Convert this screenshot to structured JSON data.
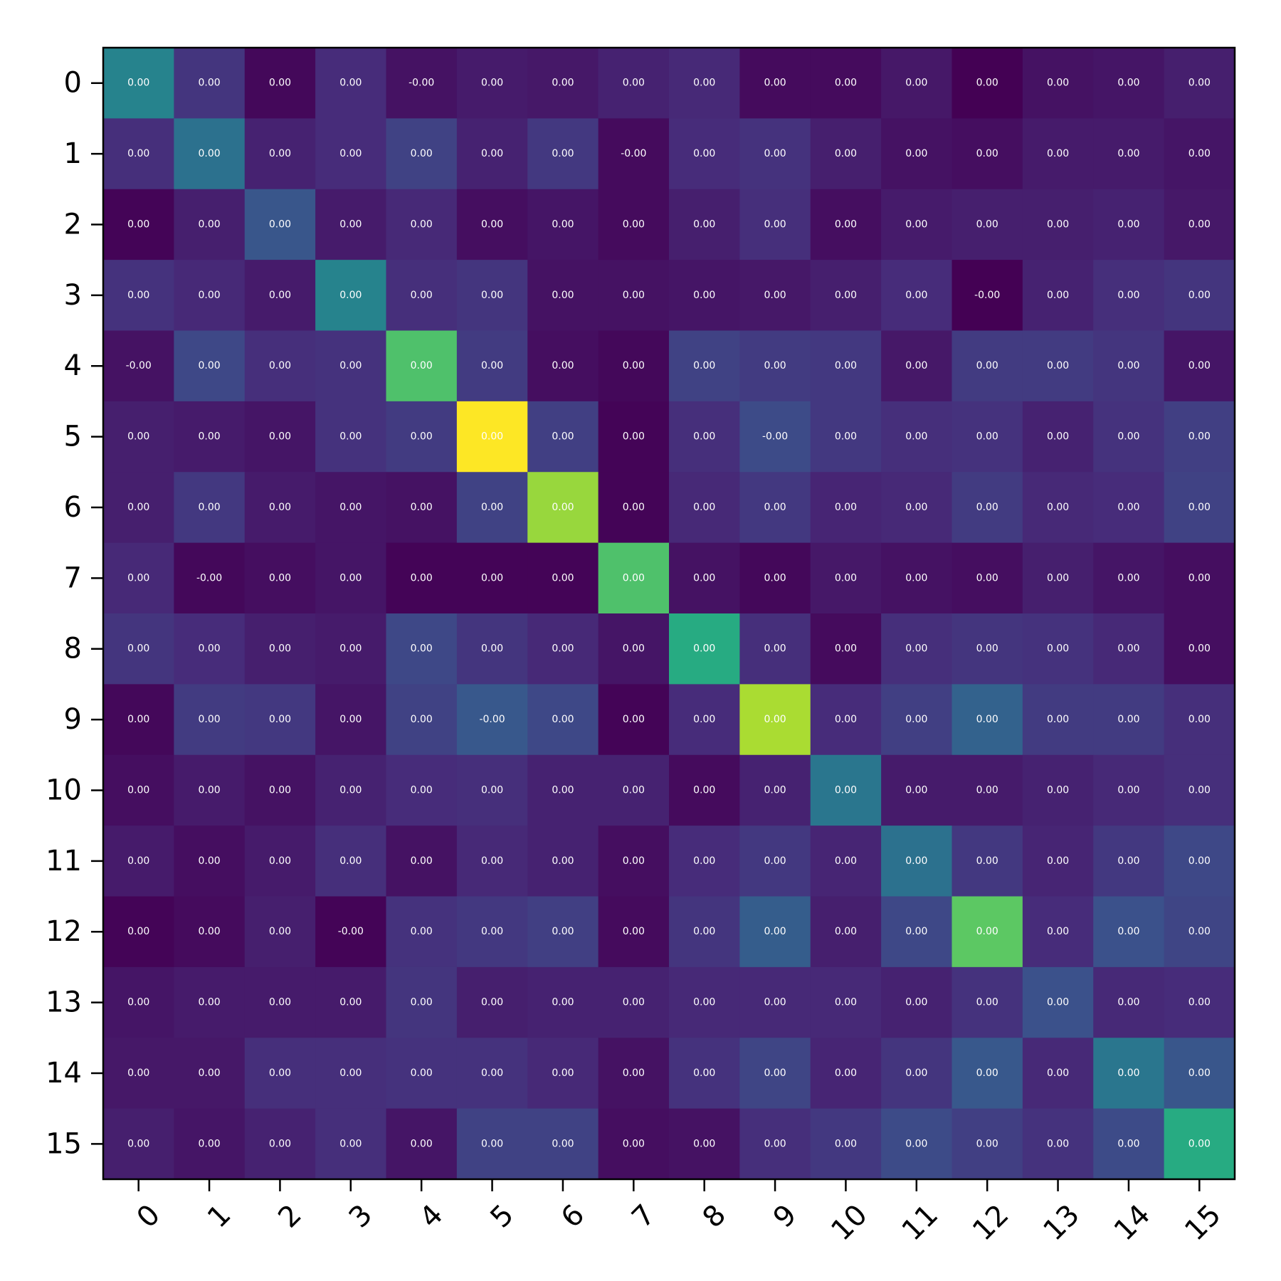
{
  "chart_data": {
    "type": "heatmap",
    "colormap": "viridis",
    "x_ticks": [
      "0",
      "1",
      "2",
      "3",
      "4",
      "5",
      "6",
      "7",
      "8",
      "9",
      "10",
      "11",
      "12",
      "13",
      "14",
      "15"
    ],
    "y_ticks": [
      "0",
      "1",
      "2",
      "3",
      "4",
      "5",
      "6",
      "7",
      "8",
      "9",
      "10",
      "11",
      "12",
      "13",
      "14",
      "15"
    ],
    "x_tick_rotation_deg": 45,
    "grid": false,
    "values": [
      [
        0.45,
        0.16,
        0.02,
        0.13,
        0.05,
        0.08,
        0.07,
        0.1,
        0.12,
        0.03,
        0.03,
        0.07,
        0.0,
        0.05,
        0.06,
        0.09
      ],
      [
        0.14,
        0.38,
        0.1,
        0.13,
        0.2,
        0.1,
        0.17,
        0.03,
        0.13,
        0.15,
        0.09,
        0.05,
        0.04,
        0.08,
        0.08,
        0.06
      ],
      [
        0.01,
        0.09,
        0.27,
        0.08,
        0.12,
        0.04,
        0.06,
        0.03,
        0.09,
        0.14,
        0.04,
        0.08,
        0.09,
        0.09,
        0.1,
        0.07
      ],
      [
        0.15,
        0.12,
        0.08,
        0.45,
        0.14,
        0.16,
        0.05,
        0.05,
        0.06,
        0.07,
        0.09,
        0.13,
        0.0,
        0.1,
        0.14,
        0.16
      ],
      [
        0.05,
        0.22,
        0.14,
        0.15,
        0.72,
        0.18,
        0.04,
        0.02,
        0.2,
        0.18,
        0.17,
        0.07,
        0.18,
        0.18,
        0.16,
        0.06
      ],
      [
        0.09,
        0.08,
        0.06,
        0.15,
        0.18,
        1.0,
        0.19,
        0.01,
        0.14,
        0.23,
        0.17,
        0.14,
        0.15,
        0.1,
        0.15,
        0.19
      ],
      [
        0.09,
        0.17,
        0.08,
        0.06,
        0.05,
        0.2,
        0.85,
        0.01,
        0.12,
        0.17,
        0.11,
        0.12,
        0.18,
        0.12,
        0.13,
        0.2
      ],
      [
        0.12,
        0.02,
        0.04,
        0.06,
        0.01,
        0.01,
        0.01,
        0.72,
        0.05,
        0.02,
        0.07,
        0.05,
        0.04,
        0.09,
        0.06,
        0.04
      ],
      [
        0.16,
        0.13,
        0.09,
        0.08,
        0.22,
        0.16,
        0.12,
        0.06,
        0.62,
        0.14,
        0.03,
        0.14,
        0.16,
        0.15,
        0.12,
        0.04
      ],
      [
        0.02,
        0.18,
        0.17,
        0.06,
        0.2,
        0.28,
        0.22,
        0.01,
        0.13,
        0.88,
        0.13,
        0.19,
        0.32,
        0.18,
        0.18,
        0.14
      ],
      [
        0.04,
        0.08,
        0.05,
        0.1,
        0.13,
        0.14,
        0.1,
        0.1,
        0.03,
        0.1,
        0.4,
        0.08,
        0.08,
        0.1,
        0.12,
        0.14
      ],
      [
        0.08,
        0.04,
        0.08,
        0.14,
        0.05,
        0.12,
        0.1,
        0.04,
        0.13,
        0.17,
        0.11,
        0.38,
        0.17,
        0.11,
        0.17,
        0.22
      ],
      [
        0.01,
        0.03,
        0.09,
        0.01,
        0.15,
        0.17,
        0.19,
        0.03,
        0.16,
        0.3,
        0.09,
        0.22,
        0.75,
        0.13,
        0.25,
        0.21
      ],
      [
        0.06,
        0.08,
        0.08,
        0.08,
        0.16,
        0.09,
        0.1,
        0.1,
        0.12,
        0.12,
        0.12,
        0.1,
        0.15,
        0.25,
        0.12,
        0.13
      ],
      [
        0.07,
        0.07,
        0.14,
        0.14,
        0.15,
        0.15,
        0.12,
        0.05,
        0.15,
        0.21,
        0.11,
        0.16,
        0.28,
        0.12,
        0.4,
        0.27
      ],
      [
        0.09,
        0.06,
        0.1,
        0.14,
        0.06,
        0.2,
        0.2,
        0.04,
        0.05,
        0.14,
        0.17,
        0.23,
        0.19,
        0.15,
        0.23,
        0.62
      ]
    ],
    "cell_labels": [
      [
        "0.00",
        "0.00",
        "0.00",
        "0.00",
        "-0.00",
        "0.00",
        "0.00",
        "0.00",
        "0.00",
        "0.00",
        "0.00",
        "0.00",
        "0.00",
        "0.00",
        "0.00",
        "0.00"
      ],
      [
        "0.00",
        "0.00",
        "0.00",
        "0.00",
        "0.00",
        "0.00",
        "0.00",
        "-0.00",
        "0.00",
        "0.00",
        "0.00",
        "0.00",
        "0.00",
        "0.00",
        "0.00",
        "0.00"
      ],
      [
        "0.00",
        "0.00",
        "0.00",
        "0.00",
        "0.00",
        "0.00",
        "0.00",
        "0.00",
        "0.00",
        "0.00",
        "0.00",
        "0.00",
        "0.00",
        "0.00",
        "0.00",
        "0.00"
      ],
      [
        "0.00",
        "0.00",
        "0.00",
        "0.00",
        "0.00",
        "0.00",
        "0.00",
        "0.00",
        "0.00",
        "0.00",
        "0.00",
        "0.00",
        "-0.00",
        "0.00",
        "0.00",
        "0.00"
      ],
      [
        "-0.00",
        "0.00",
        "0.00",
        "0.00",
        "0.00",
        "0.00",
        "0.00",
        "0.00",
        "0.00",
        "0.00",
        "0.00",
        "0.00",
        "0.00",
        "0.00",
        "0.00",
        "0.00"
      ],
      [
        "0.00",
        "0.00",
        "0.00",
        "0.00",
        "0.00",
        "0.00",
        "0.00",
        "0.00",
        "0.00",
        "-0.00",
        "0.00",
        "0.00",
        "0.00",
        "0.00",
        "0.00",
        "0.00"
      ],
      [
        "0.00",
        "0.00",
        "0.00",
        "0.00",
        "0.00",
        "0.00",
        "0.00",
        "0.00",
        "0.00",
        "0.00",
        "0.00",
        "0.00",
        "0.00",
        "0.00",
        "0.00",
        "0.00"
      ],
      [
        "0.00",
        "-0.00",
        "0.00",
        "0.00",
        "0.00",
        "0.00",
        "0.00",
        "0.00",
        "0.00",
        "0.00",
        "0.00",
        "0.00",
        "0.00",
        "0.00",
        "0.00",
        "0.00"
      ],
      [
        "0.00",
        "0.00",
        "0.00",
        "0.00",
        "0.00",
        "0.00",
        "0.00",
        "0.00",
        "0.00",
        "0.00",
        "0.00",
        "0.00",
        "0.00",
        "0.00",
        "0.00",
        "0.00"
      ],
      [
        "0.00",
        "0.00",
        "0.00",
        "0.00",
        "0.00",
        "-0.00",
        "0.00",
        "0.00",
        "0.00",
        "0.00",
        "0.00",
        "0.00",
        "0.00",
        "0.00",
        "0.00",
        "0.00"
      ],
      [
        "0.00",
        "0.00",
        "0.00",
        "0.00",
        "0.00",
        "0.00",
        "0.00",
        "0.00",
        "0.00",
        "0.00",
        "0.00",
        "0.00",
        "0.00",
        "0.00",
        "0.00",
        "0.00"
      ],
      [
        "0.00",
        "0.00",
        "0.00",
        "0.00",
        "0.00",
        "0.00",
        "0.00",
        "0.00",
        "0.00",
        "0.00",
        "0.00",
        "0.00",
        "0.00",
        "0.00",
        "0.00",
        "0.00"
      ],
      [
        "0.00",
        "0.00",
        "0.00",
        "-0.00",
        "0.00",
        "0.00",
        "0.00",
        "0.00",
        "0.00",
        "0.00",
        "0.00",
        "0.00",
        "0.00",
        "0.00",
        "0.00",
        "0.00"
      ],
      [
        "0.00",
        "0.00",
        "0.00",
        "0.00",
        "0.00",
        "0.00",
        "0.00",
        "0.00",
        "0.00",
        "0.00",
        "0.00",
        "0.00",
        "0.00",
        "0.00",
        "0.00",
        "0.00"
      ],
      [
        "0.00",
        "0.00",
        "0.00",
        "0.00",
        "0.00",
        "0.00",
        "0.00",
        "0.00",
        "0.00",
        "0.00",
        "0.00",
        "0.00",
        "0.00",
        "0.00",
        "0.00",
        "0.00"
      ],
      [
        "0.00",
        "0.00",
        "0.00",
        "0.00",
        "0.00",
        "0.00",
        "0.00",
        "0.00",
        "0.00",
        "0.00",
        "0.00",
        "0.00",
        "0.00",
        "0.00",
        "0.00",
        "0.00"
      ]
    ]
  }
}
